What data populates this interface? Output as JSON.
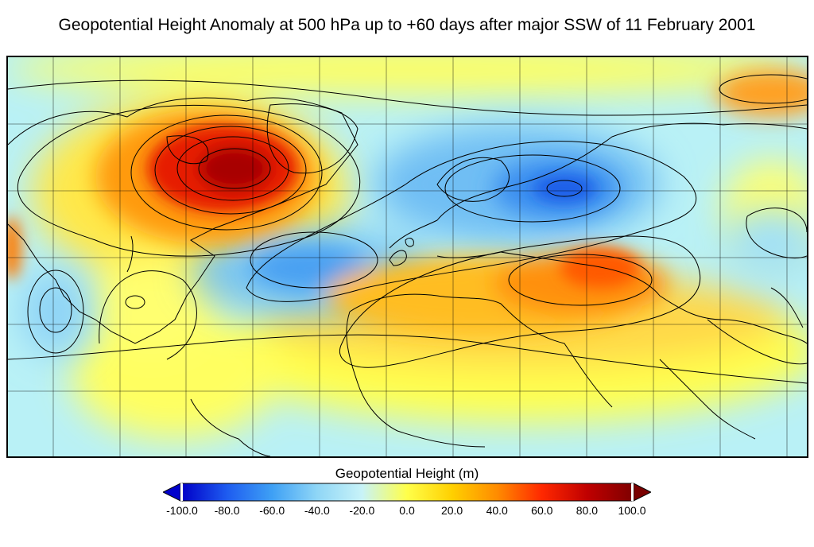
{
  "title": "Geopotential Height Anomaly at 500 hPa up to +60 days after major SSW of 11 February 2001",
  "colorbar": {
    "label": "Geopotential Height (m)",
    "min": -100,
    "max": 100,
    "ticks": [
      "-100.0",
      "-80.0",
      "-60.0",
      "-40.0",
      "-20.0",
      "0.0",
      "20.0",
      "40.0",
      "60.0",
      "80.0",
      "100.0"
    ],
    "colors": {
      "low_extend": "#0000cc",
      "high_extend": "#7a0000",
      "stops": [
        "#0000c8",
        "#1e5cf0",
        "#3ea0f5",
        "#8fd6f6",
        "#c8f3f8",
        "#ffff4a",
        "#ffd000",
        "#ff8c00",
        "#ff2800",
        "#c00000",
        "#800000"
      ]
    }
  },
  "map": {
    "projection": "equidistant cylindrical",
    "features": [
      "North Atlantic positive anomaly over Greenland",
      "negative anomaly over Scandinavia/NW Russia",
      "negative anomaly over central North Atlantic",
      "positive anomaly over North Africa, Middle East and Central Asia",
      "positive anomaly over Arctic Siberia (upper right)"
    ]
  }
}
